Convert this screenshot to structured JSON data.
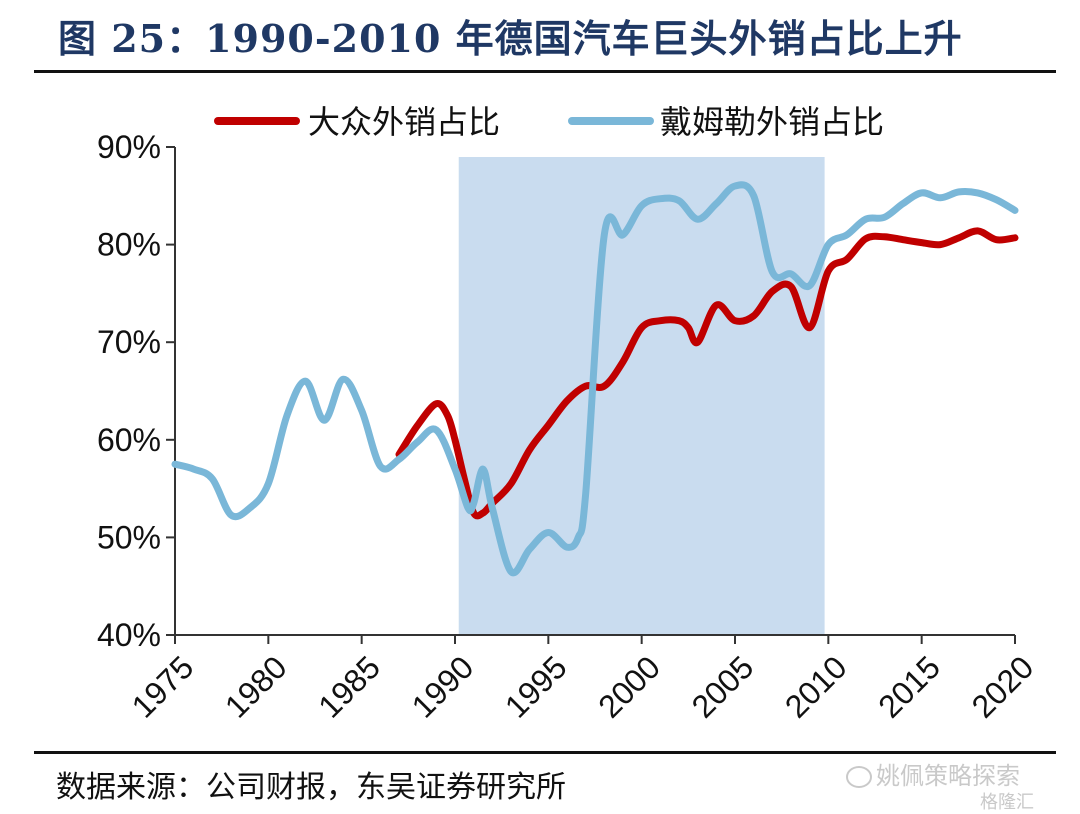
{
  "title": "图 25：1990-2010 年德国汽车巨头外销占比上升",
  "source": "数据来源：公司财报，东吴证券研究所",
  "watermark": {
    "text": "姚佩策略探索",
    "brand": "格隆汇"
  },
  "chart_data": {
    "type": "line",
    "title": "",
    "xlabel": "",
    "ylabel": "",
    "xlim": [
      1975,
      2020
    ],
    "ylim": [
      0.4,
      0.9
    ],
    "x_ticks": [
      1975,
      1980,
      1985,
      1990,
      1995,
      2000,
      2005,
      2010,
      2015,
      2020
    ],
    "x_tick_labels": [
      "1975",
      "1980",
      "1985",
      "1990",
      "1995",
      "2000",
      "2005",
      "2010",
      "2015",
      "2020"
    ],
    "y_ticks": [
      0.4,
      0.5,
      0.6,
      0.7,
      0.8,
      0.9
    ],
    "y_tick_labels": [
      "40%",
      "50%",
      "60%",
      "70%",
      "80%",
      "90%"
    ],
    "grid": false,
    "legend_position": "top",
    "highlight_band": {
      "x_start": 1990.2,
      "x_end": 2009.8,
      "color": "#c9dcef"
    },
    "series": [
      {
        "name": "大众外销占比",
        "color": "#c00000",
        "x": [
          1987,
          1988,
          1989,
          1989.6,
          1990,
          1990.5,
          1991,
          1991.5,
          1992,
          1993,
          1994,
          1995,
          1996,
          1997,
          1998,
          1999,
          2000,
          2001,
          2002,
          2002.5,
          2003,
          2004,
          2005,
          2006,
          2007,
          2008,
          2009,
          2010,
          2011,
          2012,
          2013,
          2014,
          2015,
          2016,
          2017,
          2018,
          2019,
          2020
        ],
        "y": [
          0.585,
          0.615,
          0.637,
          0.625,
          0.6,
          0.56,
          0.525,
          0.525,
          0.535,
          0.555,
          0.59,
          0.615,
          0.64,
          0.655,
          0.655,
          0.68,
          0.715,
          0.722,
          0.722,
          0.715,
          0.7,
          0.738,
          0.722,
          0.727,
          0.752,
          0.757,
          0.715,
          0.773,
          0.785,
          0.806,
          0.808,
          0.805,
          0.802,
          0.8,
          0.807,
          0.814,
          0.805,
          0.807
        ]
      },
      {
        "name": "戴姆勒外销占比",
        "color": "#7ab7d8",
        "x": [
          1975,
          1976,
          1977,
          1978,
          1979,
          1980,
          1981,
          1982,
          1983,
          1984,
          1985,
          1986,
          1987,
          1988,
          1989,
          1990,
          1990.7,
          1991,
          1991.5,
          1992,
          1993,
          1994,
          1995,
          1996,
          1996.6,
          1997,
          1998,
          1999,
          2000,
          2001,
          2002,
          2003,
          2004,
          2005,
          2006,
          2007,
          2008,
          2009,
          2010,
          2011,
          2012,
          2013,
          2014,
          2015,
          2016,
          2017,
          2018,
          2019,
          2020
        ],
        "y": [
          0.575,
          0.57,
          0.56,
          0.523,
          0.53,
          0.555,
          0.625,
          0.66,
          0.62,
          0.662,
          0.63,
          0.573,
          0.58,
          0.598,
          0.61,
          0.57,
          0.53,
          0.535,
          0.57,
          0.53,
          0.465,
          0.488,
          0.505,
          0.49,
          0.5,
          0.545,
          0.81,
          0.81,
          0.84,
          0.847,
          0.845,
          0.826,
          0.842,
          0.86,
          0.85,
          0.772,
          0.77,
          0.758,
          0.8,
          0.81,
          0.826,
          0.828,
          0.842,
          0.853,
          0.848,
          0.854,
          0.853,
          0.846,
          0.835
        ]
      }
    ]
  }
}
